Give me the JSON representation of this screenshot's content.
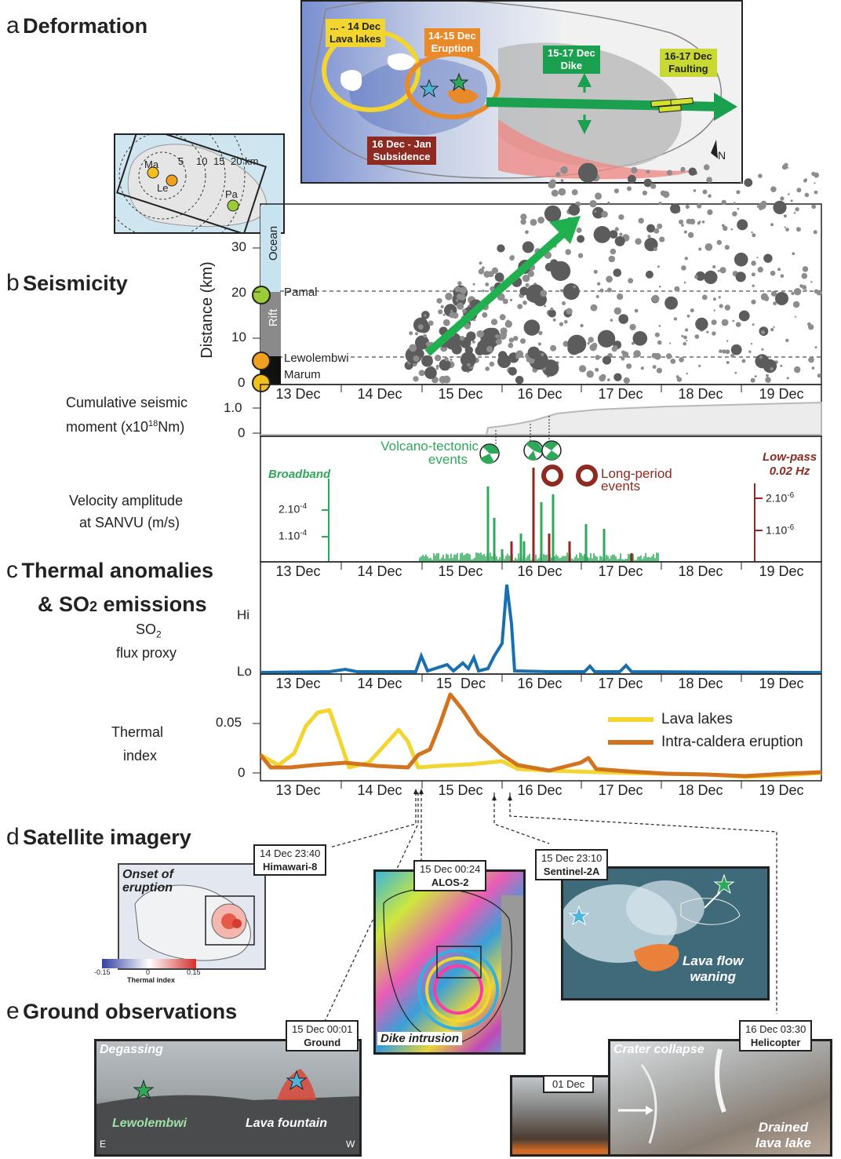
{
  "panels": {
    "a": {
      "letter": "a",
      "title": "Deformation"
    },
    "b": {
      "letter": "b",
      "title": "Seismicity"
    },
    "c": {
      "letter": "c",
      "title": "Thermal anomalies",
      "title2": "& SO",
      "title2_sub": "2",
      "title2_end": " emissions"
    },
    "d": {
      "letter": "d",
      "title": "Satellite imagery"
    },
    "e": {
      "letter": "e",
      "title": "Ground observations"
    }
  },
  "map_a": {
    "labels": {
      "lava_lakes_date": "... - 14 Dec",
      "lava_lakes": "Lava lakes",
      "eruption_date": "14-15 Dec",
      "eruption": "Eruption",
      "dike_date": "15-17 Dec",
      "dike": "Dike",
      "faulting_date": "16-17 Dec",
      "faulting": "Faulting",
      "subsidence_date": "16 Dec - Jan",
      "subsidence": "Subsidence",
      "north": "N"
    },
    "colors": {
      "yellow": "#f2d52e",
      "orange": "#e8892a",
      "green": "#1aa04e",
      "lime": "#c8d933",
      "darkred": "#8e2a22"
    }
  },
  "inset_map": {
    "stations": [
      "Ma",
      "Le",
      "Pa"
    ],
    "distance_labels": [
      "5",
      "10",
      "15",
      "20 km"
    ]
  },
  "seismicity": {
    "ylabel": "Distance (km)",
    "yticks": [
      "0",
      "10",
      "20",
      "30"
    ],
    "zones": [
      "Ocean",
      "Rift"
    ],
    "lines": [
      "Pamal",
      "Lewolembwi",
      "Marum"
    ],
    "dates": [
      "13 Dec",
      "14 Dec",
      "15 Dec",
      "16 Dec",
      "17 Dec",
      "18 Dec",
      "19 Dec"
    ]
  },
  "moment": {
    "label1": "Cumulative seismic",
    "label2": "moment (x10",
    "label2_sup": "18",
    "label2_end": "Nm)",
    "yticks": [
      "0",
      "1.0"
    ]
  },
  "velocity": {
    "label1": "Velocity amplitude",
    "label2": "at SANVU (m/s)",
    "broadband": "Broadband",
    "lowpass1": "Low-pass",
    "lowpass2": "0.02 Hz",
    "vt1": "Volcano-tectonic",
    "vt2": "events",
    "lp1": "Long-period",
    "lp2": "events",
    "left_ticks": [
      "2.10",
      "1.10"
    ],
    "left_exp": "-4",
    "right_ticks": [
      "2.10",
      "1.10"
    ],
    "right_exp": "-6",
    "dates": [
      "13 Dec",
      "14 Dec",
      "15 Dec",
      "16 Dec",
      "17 Dec",
      "18 Dec",
      "19 Dec"
    ]
  },
  "so2": {
    "label1": "SO",
    "label1_sub": "2",
    "label2": "flux proxy",
    "hi": "Hi",
    "lo": "Lo",
    "dates": [
      "13 Dec",
      "14 Dec",
      "15",
      "Dec",
      "16 Dec",
      "17 Dec",
      "18 Dec",
      "19 Dec"
    ]
  },
  "thermal": {
    "label1": "Thermal",
    "label2": "index",
    "yticks": [
      "0",
      "0.05"
    ],
    "legend": [
      "Lava lakes",
      "Intra-caldera eruption"
    ],
    "dates": [
      "13 Dec",
      "14 Dec",
      "15 Dec",
      "16 Dec",
      "17 Dec",
      "18 Dec",
      "19 Dec"
    ]
  },
  "satellite": {
    "himawari": {
      "time": "14 Dec 23:40",
      "source": "Himawari-8",
      "caption1": "Onset of",
      "caption2": "eruption"
    },
    "colorbar": {
      "min": "-0.15",
      "mid": "0",
      "max": "0.15",
      "label": "Thermal index"
    },
    "alos": {
      "time": "15 Dec 00:24",
      "source": "ALOS-2",
      "caption": "Dike intrusion"
    },
    "sentinel": {
      "time": "15 Dec 23:10",
      "source": "Sentinel-2A",
      "caption1": "Lava flow",
      "caption2": "waning"
    }
  },
  "ground": {
    "photo1": {
      "time": "15 Dec 00:01",
      "source": "Ground",
      "caption_tl": "Degassing",
      "caption_l": "Lewolembwi",
      "caption_r": "Lava fountain",
      "corner_l": "E",
      "corner_r": "W"
    },
    "photo2": {
      "time": "01 Dec"
    },
    "photo3": {
      "time": "16 Dec 03:30",
      "source": "Helicopter",
      "caption_tl": "Crater collapse",
      "caption1": "Drained",
      "caption2": "lava lake"
    }
  }
}
